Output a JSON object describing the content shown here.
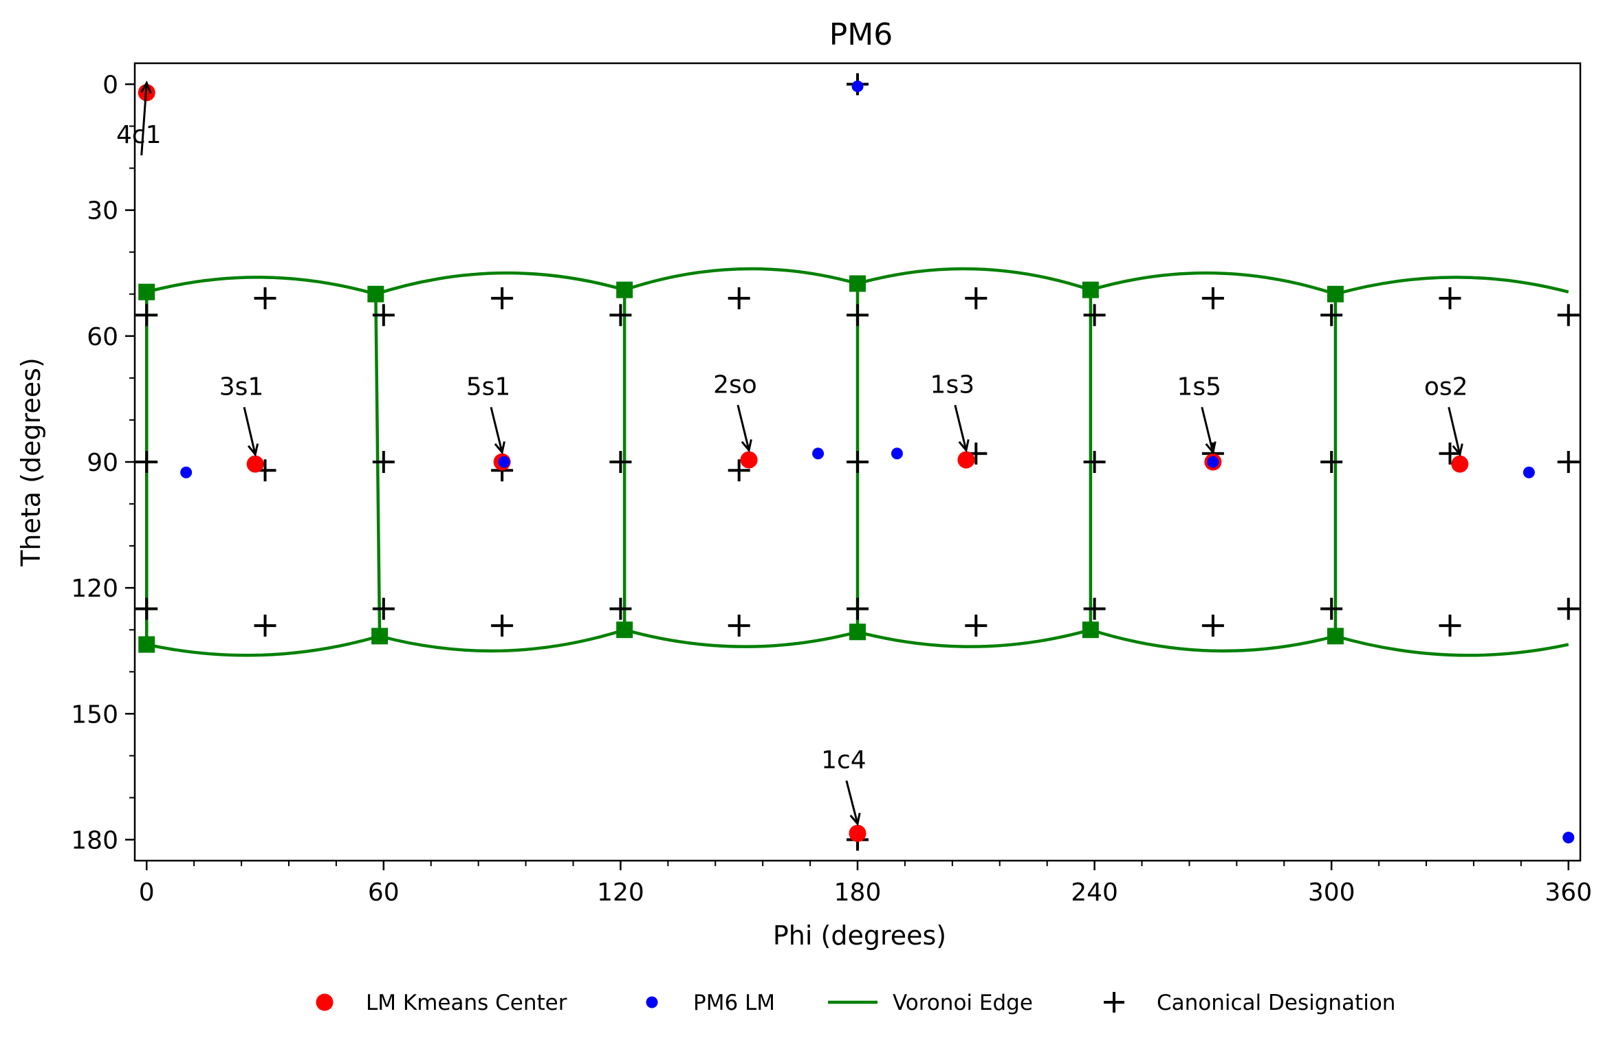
{
  "chart_data": {
    "type": "scatter",
    "title": "PM6",
    "xlabel": "Phi (degrees)",
    "ylabel": "Theta (degrees)",
    "xlim": [
      -3,
      363
    ],
    "ylim": [
      185,
      -5
    ],
    "y_inverted": true,
    "grid": false,
    "x_ticks": [
      0,
      60,
      120,
      180,
      240,
      300,
      360
    ],
    "y_ticks": [
      0,
      30,
      60,
      90,
      120,
      150,
      180
    ],
    "x_minor_step": 12,
    "y_minor_step": 10,
    "legend_position": "below",
    "colors": {
      "kmeans": "#ff0000",
      "pm6": "#0000ff",
      "voronoi": "#008000",
      "canonical": "#000000"
    },
    "series": [
      {
        "name": "LM Kmeans Center",
        "marker": "circle-large",
        "color": "#ff0000",
        "points": [
          {
            "x": 0,
            "y": 2
          },
          {
            "x": 27.5,
            "y": 90.5
          },
          {
            "x": 90,
            "y": 90
          },
          {
            "x": 152.5,
            "y": 89.5
          },
          {
            "x": 207.5,
            "y": 89.5
          },
          {
            "x": 270,
            "y": 90
          },
          {
            "x": 332.5,
            "y": 90.5
          },
          {
            "x": 180,
            "y": 178.5
          }
        ]
      },
      {
        "name": "PM6 LM",
        "marker": "circle-small",
        "color": "#0000ff",
        "points": [
          {
            "x": 180,
            "y": 0.5
          },
          {
            "x": 10,
            "y": 92.5
          },
          {
            "x": 90.5,
            "y": 90
          },
          {
            "x": 170,
            "y": 88
          },
          {
            "x": 190,
            "y": 88
          },
          {
            "x": 270,
            "y": 90
          },
          {
            "x": 350,
            "y": 92.5
          },
          {
            "x": 360,
            "y": 179.5
          }
        ]
      },
      {
        "name": "Voronoi Edge",
        "marker": "line-square",
        "color": "#008000",
        "vertices_top": [
          {
            "x": 0,
            "y": 49.5
          },
          {
            "x": 58,
            "y": 50
          },
          {
            "x": 121,
            "y": 49
          },
          {
            "x": 180,
            "y": 47.5
          },
          {
            "x": 239,
            "y": 49
          },
          {
            "x": 301,
            "y": 50
          }
        ],
        "vertices_bottom": [
          {
            "x": 0,
            "y": 133.5
          },
          {
            "x": 59,
            "y": 131.5
          },
          {
            "x": 121,
            "y": 130
          },
          {
            "x": 180,
            "y": 130.5
          },
          {
            "x": 239,
            "y": 130
          },
          {
            "x": 301,
            "y": 131.5
          }
        ],
        "top_arcs": [
          {
            "x1": 0,
            "y1": 49.5,
            "x2": 58,
            "y2": 50,
            "peak": 46
          },
          {
            "x1": 58,
            "y1": 50,
            "x2": 121,
            "y2": 49,
            "peak": 45
          },
          {
            "x1": 121,
            "y1": 49,
            "x2": 180,
            "y2": 47.5,
            "peak": 44
          },
          {
            "x1": 180,
            "y1": 47.5,
            "x2": 239,
            "y2": 49,
            "peak": 44
          },
          {
            "x1": 239,
            "y1": 49,
            "x2": 301,
            "y2": 50,
            "peak": 45
          },
          {
            "x1": 301,
            "y1": 50,
            "x2": 360,
            "y2": 49.5,
            "peak": 46
          }
        ],
        "bottom_arcs": [
          {
            "x1": 0,
            "y1": 133.5,
            "x2": 59,
            "y2": 131.5,
            "peak": 136
          },
          {
            "x1": 59,
            "y1": 131.5,
            "x2": 121,
            "y2": 130,
            "peak": 135
          },
          {
            "x1": 121,
            "y1": 130,
            "x2": 180,
            "y2": 130.5,
            "peak": 134
          },
          {
            "x1": 180,
            "y1": 130.5,
            "x2": 239,
            "y2": 130,
            "peak": 134
          },
          {
            "x1": 239,
            "y1": 130,
            "x2": 301,
            "y2": 131.5,
            "peak": 135
          },
          {
            "x1": 301,
            "y1": 131.5,
            "x2": 360,
            "y2": 133.5,
            "peak": 136
          }
        ],
        "verticals": [
          {
            "x_top": 0,
            "y_top": 49.5,
            "x_bottom": 0,
            "y_bottom": 133.5
          },
          {
            "x_top": 58,
            "y_top": 50,
            "x_bottom": 59,
            "y_bottom": 131.5
          },
          {
            "x_top": 121,
            "y_top": 49,
            "x_bottom": 121,
            "y_bottom": 130
          },
          {
            "x_top": 180,
            "y_top": 47.5,
            "x_bottom": 180,
            "y_bottom": 130.5
          },
          {
            "x_top": 239,
            "y_top": 49,
            "x_bottom": 239,
            "y_bottom": 130
          },
          {
            "x_top": 301,
            "y_top": 50,
            "x_bottom": 301,
            "y_bottom": 131.5
          }
        ]
      },
      {
        "name": "Canonical Designation",
        "marker": "plus",
        "color": "#000000",
        "points": [
          {
            "x": 180,
            "y": 0
          },
          {
            "x": 30,
            "y": 51
          },
          {
            "x": 90,
            "y": 51
          },
          {
            "x": 150,
            "y": 51
          },
          {
            "x": 210,
            "y": 51
          },
          {
            "x": 270,
            "y": 51
          },
          {
            "x": 330,
            "y": 51
          },
          {
            "x": 0,
            "y": 55
          },
          {
            "x": 60,
            "y": 55
          },
          {
            "x": 120,
            "y": 55
          },
          {
            "x": 180,
            "y": 55
          },
          {
            "x": 240,
            "y": 55
          },
          {
            "x": 300,
            "y": 55
          },
          {
            "x": 360,
            "y": 55
          },
          {
            "x": 0,
            "y": 90
          },
          {
            "x": 60,
            "y": 90
          },
          {
            "x": 120,
            "y": 90
          },
          {
            "x": 180,
            "y": 90
          },
          {
            "x": 240,
            "y": 90
          },
          {
            "x": 300,
            "y": 90
          },
          {
            "x": 360,
            "y": 90
          },
          {
            "x": 30,
            "y": 92
          },
          {
            "x": 90,
            "y": 92
          },
          {
            "x": 150,
            "y": 92
          },
          {
            "x": 210,
            "y": 88
          },
          {
            "x": 270,
            "y": 88
          },
          {
            "x": 330,
            "y": 88
          },
          {
            "x": 0,
            "y": 125
          },
          {
            "x": 60,
            "y": 125
          },
          {
            "x": 120,
            "y": 125
          },
          {
            "x": 180,
            "y": 125
          },
          {
            "x": 240,
            "y": 125
          },
          {
            "x": 300,
            "y": 125
          },
          {
            "x": 360,
            "y": 125
          },
          {
            "x": 30,
            "y": 129
          },
          {
            "x": 90,
            "y": 129
          },
          {
            "x": 150,
            "y": 129
          },
          {
            "x": 210,
            "y": 129
          },
          {
            "x": 270,
            "y": 129
          },
          {
            "x": 330,
            "y": 129
          },
          {
            "x": 180,
            "y": 180
          }
        ]
      }
    ],
    "annotations": [
      {
        "text": "4c1",
        "x": 0,
        "y": 2,
        "text_x": -2,
        "text_y": 14
      },
      {
        "text": "3s1",
        "x": 27.5,
        "y": 90.5,
        "text_x": 24,
        "text_y": 74
      },
      {
        "text": "5s1",
        "x": 90,
        "y": 90,
        "text_x": 86.5,
        "text_y": 74
      },
      {
        "text": "2so",
        "x": 152.5,
        "y": 89.5,
        "text_x": 149,
        "text_y": 73.5
      },
      {
        "text": "1s3",
        "x": 207.5,
        "y": 89.5,
        "text_x": 204,
        "text_y": 73.5
      },
      {
        "text": "1s5",
        "x": 270,
        "y": 90,
        "text_x": 266.5,
        "text_y": 74
      },
      {
        "text": "os2",
        "x": 332.5,
        "y": 90.5,
        "text_x": 329,
        "text_y": 74
      },
      {
        "text": "1c4",
        "x": 180,
        "y": 178.5,
        "text_x": 176.5,
        "text_y": 163
      }
    ],
    "legend": [
      {
        "label": "LM Kmeans Center",
        "marker": "circle-large",
        "color": "#ff0000"
      },
      {
        "label": "PM6 LM",
        "marker": "circle-small",
        "color": "#0000ff"
      },
      {
        "label": "Voronoi Edge",
        "marker": "line",
        "color": "#008000"
      },
      {
        "label": "Canonical Designation",
        "marker": "plus",
        "color": "#000000"
      }
    ]
  }
}
